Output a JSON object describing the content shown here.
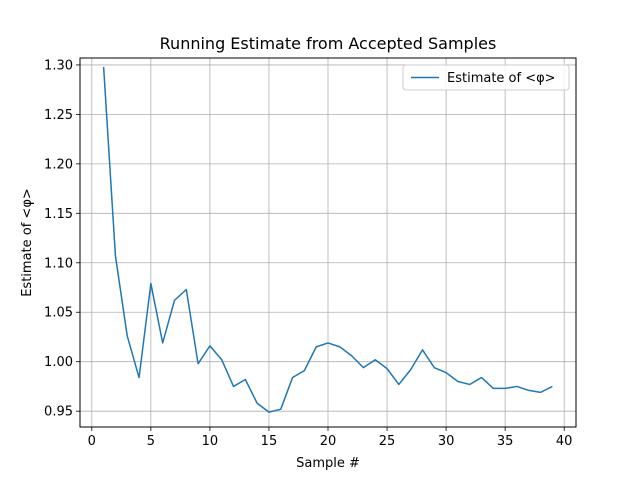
{
  "chart_data": {
    "type": "line",
    "title": "Running Estimate from Accepted Samples",
    "xlabel": "Sample #",
    "ylabel": "Estimate of <φ>",
    "xlim": [
      -1,
      41
    ],
    "ylim": [
      0.934,
      1.307
    ],
    "xticks": [
      0,
      5,
      10,
      15,
      20,
      25,
      30,
      35,
      40
    ],
    "yticks": [
      0.95,
      1.0,
      1.05,
      1.1,
      1.15,
      1.2,
      1.25,
      1.3
    ],
    "ytick_labels": [
      "0.95",
      "1.00",
      "1.05",
      "1.10",
      "1.15",
      "1.20",
      "1.25",
      "1.30"
    ],
    "grid": true,
    "legend_position": "upper right",
    "series": [
      {
        "name": "Estimate of <φ>",
        "color": "#1f77b4",
        "x": [
          1,
          2,
          3,
          4,
          5,
          6,
          7,
          8,
          9,
          10,
          11,
          12,
          13,
          14,
          15,
          16,
          17,
          18,
          19,
          20,
          21,
          22,
          23,
          24,
          25,
          26,
          27,
          28,
          29,
          30,
          31,
          32,
          33,
          34,
          35,
          36,
          37,
          38,
          39
        ],
        "y": [
          1.298,
          1.107,
          1.026,
          0.984,
          1.079,
          1.019,
          1.062,
          1.073,
          0.998,
          1.016,
          1.002,
          0.975,
          0.982,
          0.958,
          0.949,
          0.952,
          0.984,
          0.991,
          1.015,
          1.019,
          1.015,
          1.006,
          0.994,
          1.002,
          0.993,
          0.977,
          0.992,
          1.012,
          0.994,
          0.989,
          0.98,
          0.977,
          0.984,
          0.973,
          0.973,
          0.975,
          0.971,
          0.969,
          0.975
        ]
      }
    ]
  }
}
